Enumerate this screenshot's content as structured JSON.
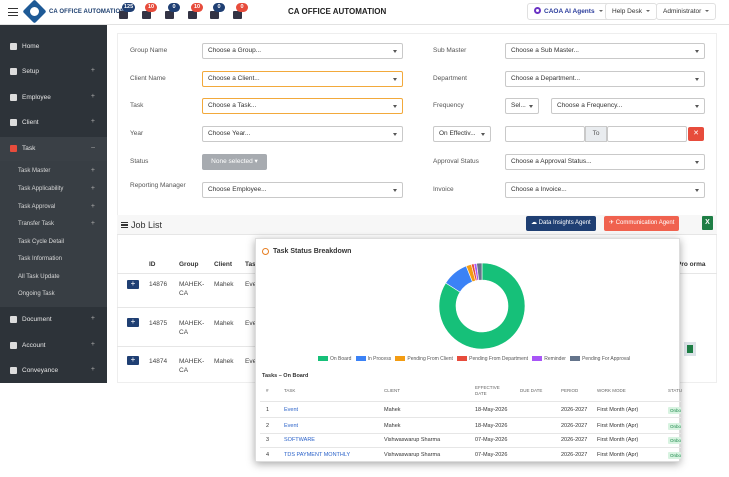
{
  "header": {
    "brand": "CA OFFICE AUTOMATION",
    "app_title": "CA OFFICE AUTOMATION",
    "notifications": [
      {
        "icon": "bell-icon",
        "count": "125",
        "color": "#1f3f73"
      },
      {
        "icon": "list-icon",
        "count": "10",
        "color": "#e74c3c"
      },
      {
        "icon": "mail-icon",
        "count": "0",
        "color": "#1f3f73"
      },
      {
        "icon": "tasks-icon",
        "count": "10",
        "color": "#e74c3c"
      },
      {
        "icon": "chat-icon",
        "count": "0",
        "color": "#1f3f73"
      },
      {
        "icon": "robot-icon",
        "count": "0",
        "color": "#e74c3c"
      }
    ],
    "ai_agents": "CAOA AI Agents",
    "help_desk": "Help Desk",
    "user": "Administrator"
  },
  "sidebar": {
    "items": [
      {
        "label": "Home",
        "icon": "home-icon"
      },
      {
        "label": "Setup",
        "icon": "gear-icon"
      },
      {
        "label": "Employee",
        "icon": "user-icon"
      },
      {
        "label": "Client",
        "icon": "client-icon"
      },
      {
        "label": "Task",
        "icon": "task-icon"
      },
      {
        "label": "Document",
        "icon": "document-icon"
      },
      {
        "label": "Account",
        "icon": "account-icon"
      },
      {
        "label": "Conveyance",
        "icon": "car-icon"
      }
    ],
    "task_submenu": [
      "Task Master",
      "Task Applicability",
      "Task Approval",
      "Transfer Task",
      "Task Cycle Detail",
      "Task Information",
      "All Task Update",
      "Ongoing Task"
    ]
  },
  "filters": {
    "group_name": {
      "label": "Group Name",
      "value": "Choose a Group..."
    },
    "sub_master": {
      "label": "Sub Master",
      "value": "Choose a Sub Master..."
    },
    "client_name": {
      "label": "Client Name",
      "value": "Choose a Client..."
    },
    "department": {
      "label": "Department",
      "value": "Choose a Department..."
    },
    "task": {
      "label": "Task",
      "value": "Choose a Task..."
    },
    "frequency": {
      "label": "Frequency",
      "value_short": "Sel...",
      "value": "Choose a Frequency..."
    },
    "year": {
      "label": "Year",
      "value": "Choose Year..."
    },
    "on_effective": {
      "value": "On Effectiv...",
      "to": "To",
      "clear": "✕"
    },
    "status": {
      "label": "Status",
      "value": "None selected"
    },
    "approval_status": {
      "label": "Approval Status",
      "value": "Choose a Approval Status..."
    },
    "reporting_manager": {
      "label": "Reporting Manager",
      "value": "Choose Employee..."
    },
    "invoice": {
      "label": "Invoice",
      "value": "Choose a Invoice..."
    }
  },
  "job_list": {
    "title": "Job List",
    "data_insights": "Data Insights Agent",
    "communication": "Communication Agent",
    "excel": "X",
    "columns": [
      "ID",
      "Group",
      "Client",
      "Tas"
    ],
    "extra_col": "Pro orma",
    "rows": [
      {
        "id": "14876",
        "group": "MAHEK-CA",
        "client": "Mahek",
        "task": "Eve"
      },
      {
        "id": "14875",
        "group": "MAHEK-CA",
        "client": "Mahek",
        "task": "Eve"
      },
      {
        "id": "14874",
        "group": "MAHEK-CA",
        "client": "Mahek",
        "task": "Eve"
      }
    ]
  },
  "popup": {
    "title": "Task Status Breakdown",
    "tasks_heading": "Tasks – On Board",
    "columns": [
      "#",
      "TASK",
      "CLIENT",
      "EFFECTIVE DATE",
      "DUE DATE",
      "PERIOD",
      "WORK MODE",
      "STATU"
    ],
    "rows": [
      {
        "n": "1",
        "task": "Event",
        "client": "Mahek",
        "date": "18-May-2026",
        "due": "",
        "period": "2026-2027",
        "mode": "First Month (Apr)",
        "status": "Onbo"
      },
      {
        "n": "2",
        "task": "Event",
        "client": "Mahek",
        "date": "18-May-2026",
        "due": "",
        "period": "2026-2027",
        "mode": "First Month (Apr)",
        "status": "Onbo"
      },
      {
        "n": "3",
        "task": "SOFTWARE",
        "client": "Vishwaswarup Sharma",
        "date": "07-May-2026",
        "due": "",
        "period": "2026-2027",
        "mode": "First Month (Apr)",
        "status": "Onbo"
      },
      {
        "n": "4",
        "task": "TDS PAYMENT MONTHLY",
        "client": "Vishwaswarup Sharma",
        "date": "07-May-2026",
        "due": "",
        "period": "2026-2027",
        "mode": "First Month (Apr)",
        "status": "Onbo"
      }
    ]
  },
  "chart_data": {
    "type": "pie",
    "series": [
      {
        "name": "On Board",
        "value": 84,
        "color": "#16c079"
      },
      {
        "name": "In Process",
        "value": 10,
        "color": "#3b82f6"
      },
      {
        "name": "Pending From Client",
        "value": 2,
        "color": "#f39c12"
      },
      {
        "name": "Pending From Department",
        "value": 1,
        "color": "#e74c3c"
      },
      {
        "name": "Reminder",
        "value": 1,
        "color": "#a855f7"
      },
      {
        "name": "Pending For Approval",
        "value": 2,
        "color": "#64748b"
      }
    ],
    "legend": "bottom"
  }
}
